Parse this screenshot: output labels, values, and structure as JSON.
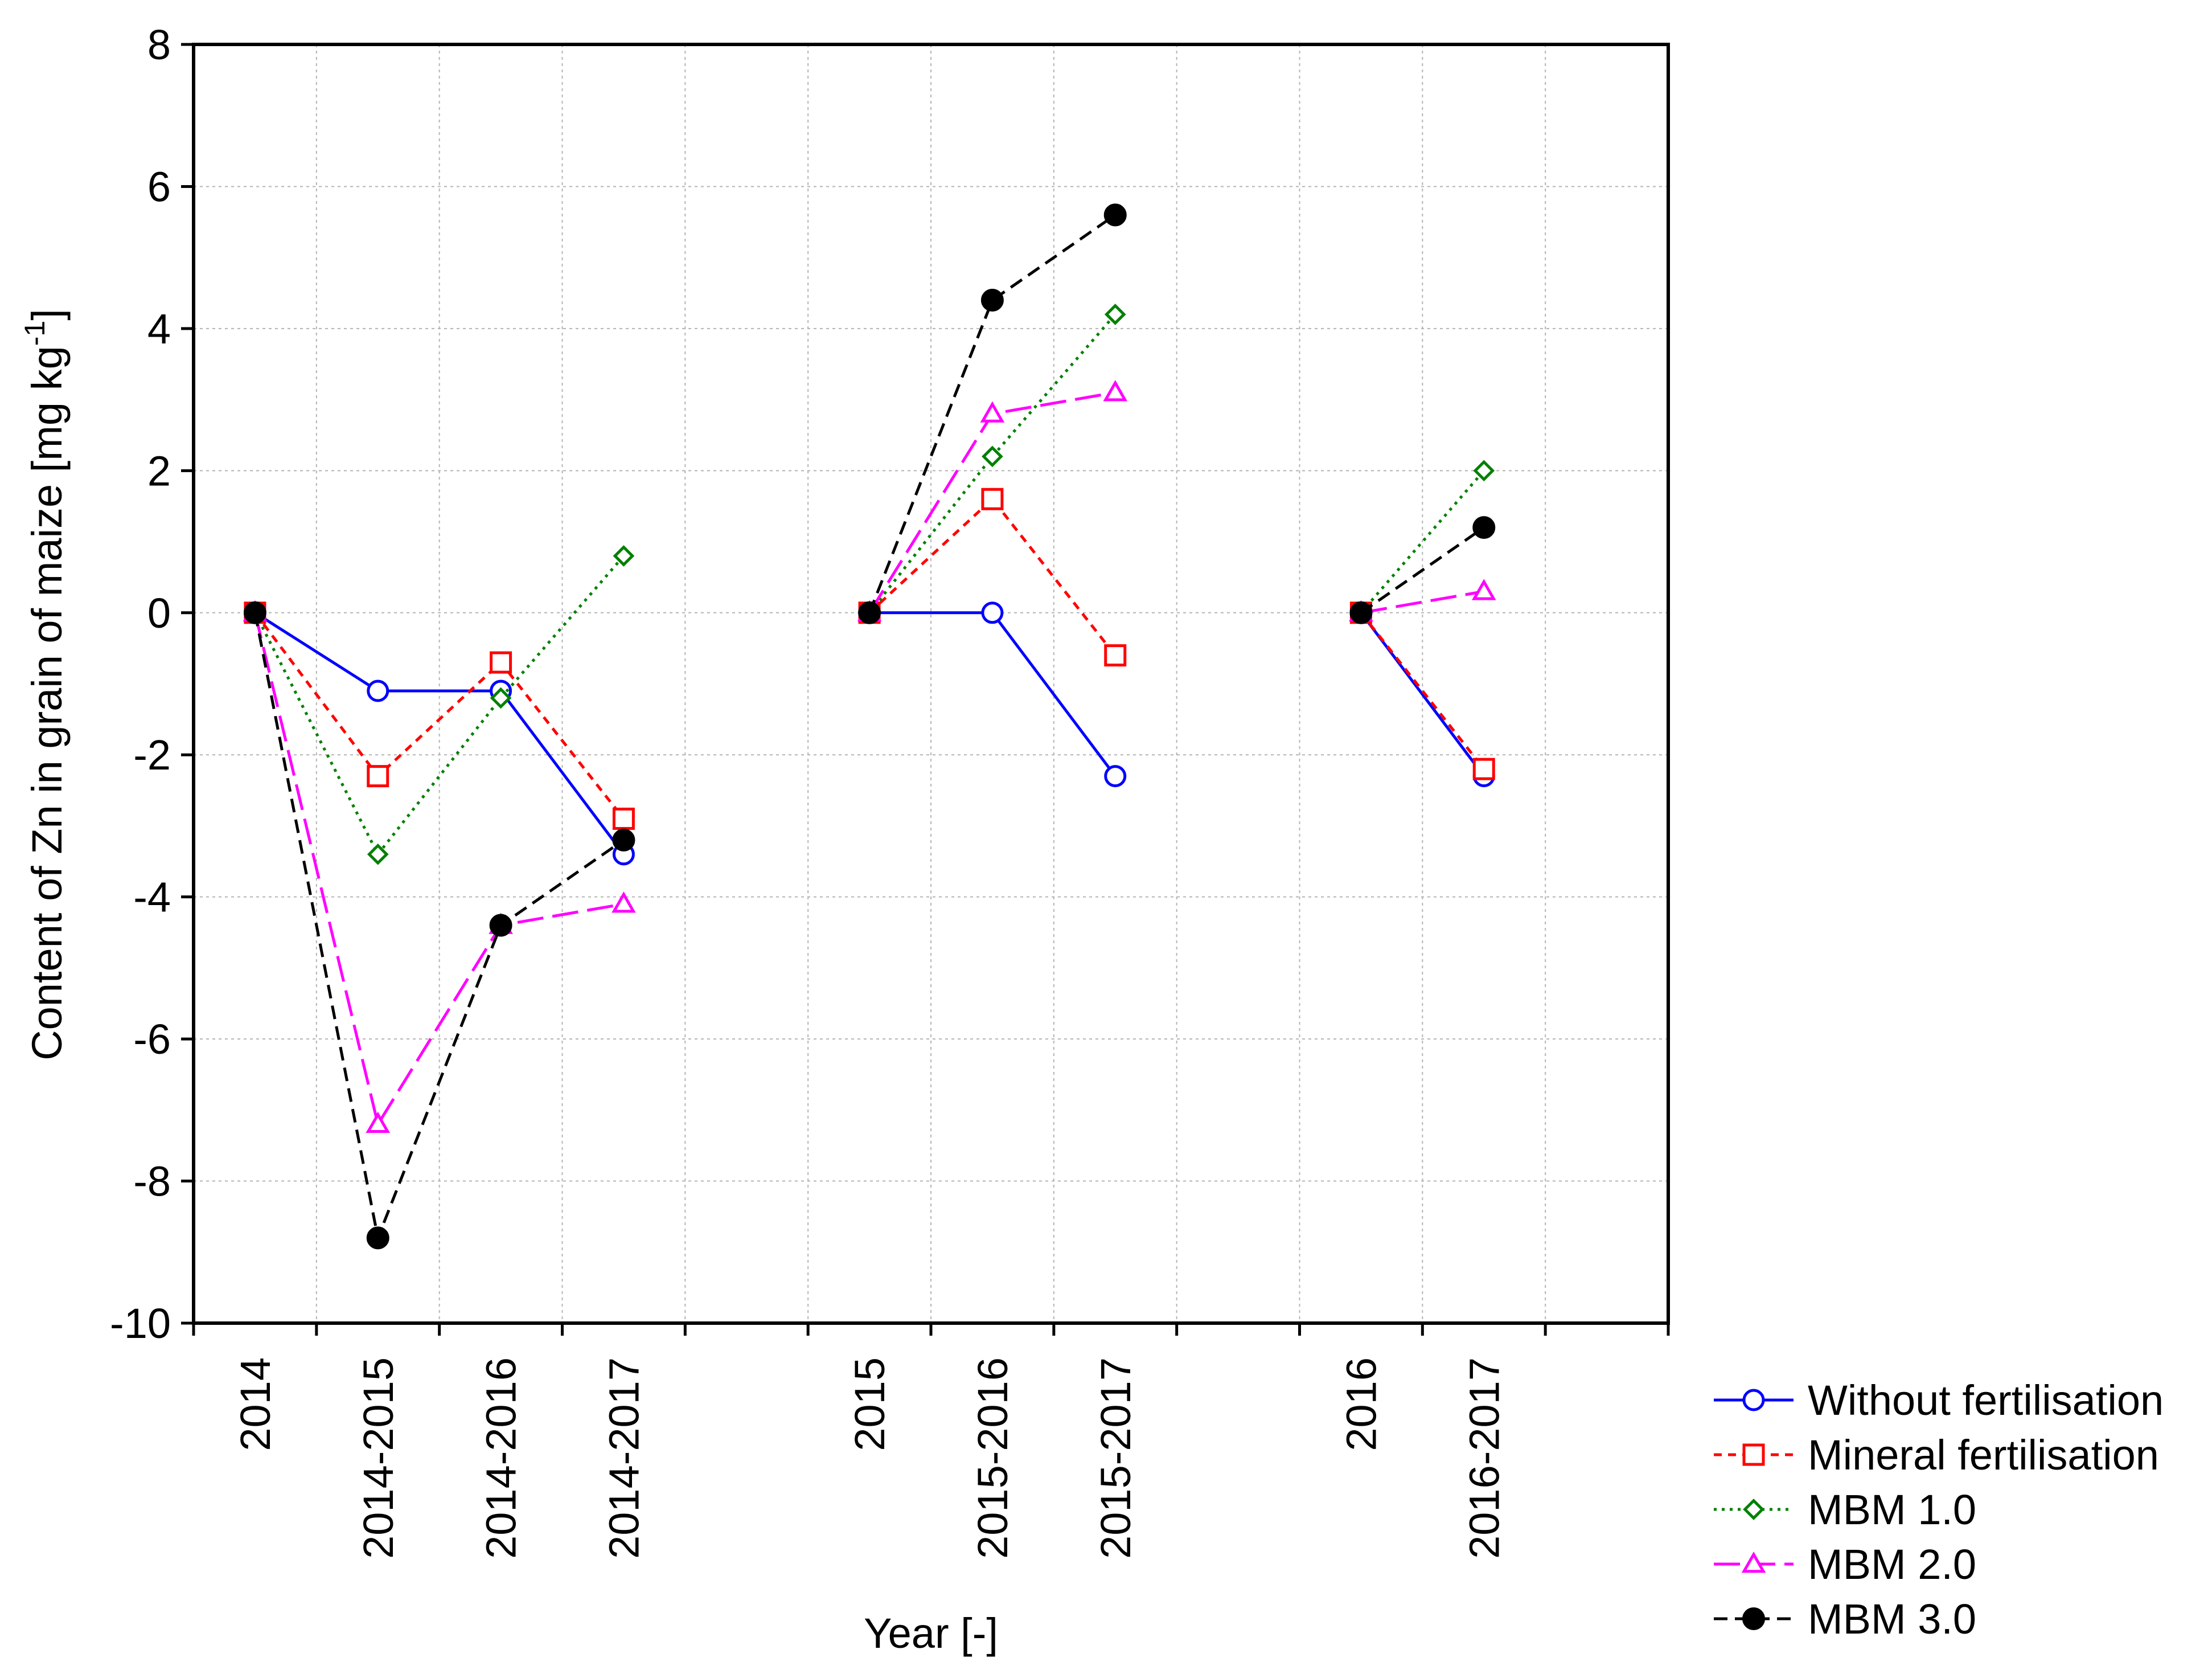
{
  "chart_data": {
    "type": "line",
    "title": "",
    "xlabel": "Year [-]",
    "ylabel": "Content of Zn in grain of maize [mg kg",
    "ylabel_sup": "-1",
    "ylabel_close": "]",
    "ylim": [
      -10,
      8
    ],
    "yticks": [
      -10,
      -8,
      -6,
      -4,
      -2,
      0,
      2,
      4,
      6,
      8
    ],
    "ytick_labels": [
      "-10",
      "-8",
      "-6",
      "-4",
      "-2",
      "0",
      "2",
      "4",
      "6",
      "8"
    ],
    "grid": true,
    "legend_position": "bottom-right, outside plot",
    "categories": [
      "2014",
      "2014-2015",
      "2014-2016",
      "2014-2017",
      "",
      "2015",
      "2015-2016",
      "2015-2017",
      "",
      "2016",
      "2016-2017",
      ""
    ],
    "series": [
      {
        "name": "Without fertilisation",
        "color": "#0000ff",
        "marker": "circle",
        "dash": "solid",
        "values": [
          0,
          -1.1,
          -1.1,
          -3.4,
          null,
          0,
          0,
          -2.3,
          null,
          0,
          -2.3,
          null
        ]
      },
      {
        "name": "Mineral fertilisation",
        "color": "#ff0000",
        "marker": "square",
        "dash": "short-dash",
        "values": [
          0,
          -2.3,
          -0.7,
          -2.9,
          null,
          0,
          1.6,
          -0.6,
          null,
          0,
          -2.2,
          null
        ]
      },
      {
        "name": "MBM 1.0",
        "color": "#008000",
        "marker": "diamond",
        "dash": "dotted",
        "values": [
          0,
          -3.4,
          -1.2,
          0.8,
          null,
          0,
          2.2,
          4.2,
          null,
          0,
          2.0,
          null
        ]
      },
      {
        "name": "MBM 2.0",
        "color": "#ff00ff",
        "marker": "triangle",
        "dash": "long-dash",
        "values": [
          0,
          -7.2,
          -4.4,
          -4.1,
          null,
          0,
          2.8,
          3.1,
          null,
          0,
          0.3,
          null
        ]
      },
      {
        "name": "MBM 3.0",
        "color": "#000000",
        "marker": "filled-circle",
        "dash": "dash",
        "values": [
          0,
          -8.8,
          -4.4,
          -3.2,
          null,
          0,
          4.4,
          5.6,
          null,
          0,
          1.2,
          null
        ]
      }
    ]
  }
}
